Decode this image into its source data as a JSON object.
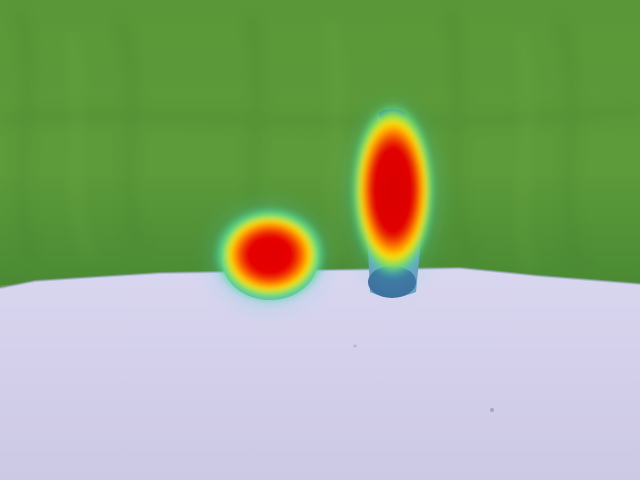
{
  "scene": {
    "description_visible_text": "",
    "colors": {
      "backdrop": "#5f9a3a",
      "backdrop_dark": "#4f8a30",
      "floor": "#d8d4ee",
      "floor_light": "#e4e0f2",
      "heat_hot": "#e60000",
      "heat_warm": "#ff8a00",
      "heat_mid": "#ffe000",
      "heat_cool": "#31d8b0"
    },
    "heat_peaks": [
      {
        "label": "left-object",
        "intensity": 1.0
      },
      {
        "label": "right-object",
        "intensity": 1.0
      }
    ]
  }
}
